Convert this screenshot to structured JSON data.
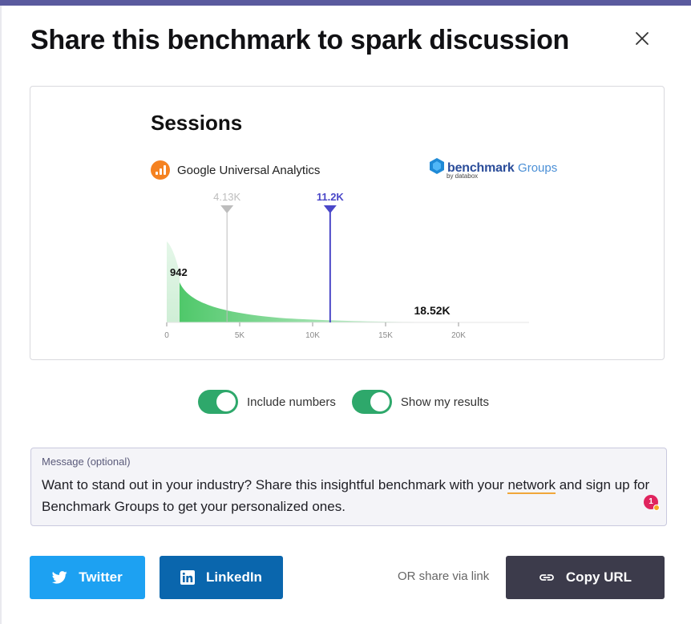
{
  "modal": {
    "title": "Share this benchmark to spark discussion",
    "close_icon": "close-icon"
  },
  "preview": {
    "metric_title": "Sessions",
    "source_label": "Google Universal Analytics",
    "source_icon": "google-analytics-icon",
    "brand": {
      "word": "benchmark",
      "groups": "Groups",
      "by": "by databox"
    },
    "chart_data": {
      "type": "area",
      "x_ticks": [
        "0",
        "5K",
        "10K",
        "15K",
        "20K"
      ],
      "xlim": [
        0,
        25000
      ],
      "markers": [
        {
          "label": "4.13K",
          "value": 4130,
          "color": "#bdbdbd"
        },
        {
          "label": "11.2K",
          "value": 11200,
          "color": "#4a47c8"
        }
      ],
      "data_labels": [
        {
          "label": "942",
          "value": 942
        },
        {
          "label": "18.52K",
          "value": 18520
        }
      ],
      "colors": {
        "fill_dark": "#4fc86a",
        "fill_light": "#e5f7e9"
      }
    }
  },
  "options": {
    "include_numbers": {
      "label": "Include numbers",
      "on": true
    },
    "show_my_results": {
      "label": "Show my results",
      "on": true
    }
  },
  "message": {
    "label": "Message (optional)",
    "text_before": "Want to stand out in your industry? Share this insightful benchmark with your ",
    "text_flagged": "network",
    "text_after": " and sign up for Benchmark Groups to get your personalized ones.",
    "badge_count": "1"
  },
  "share": {
    "twitter": {
      "label": "Twitter",
      "icon": "twitter-icon",
      "color": "#1da1f2"
    },
    "linkedin": {
      "label": "LinkedIn",
      "icon": "linkedin-icon",
      "color": "#0a66ad"
    },
    "or_link": "OR share via link",
    "copy_url": {
      "label": "Copy URL",
      "icon": "link-icon",
      "color": "#3c3b4b"
    }
  }
}
